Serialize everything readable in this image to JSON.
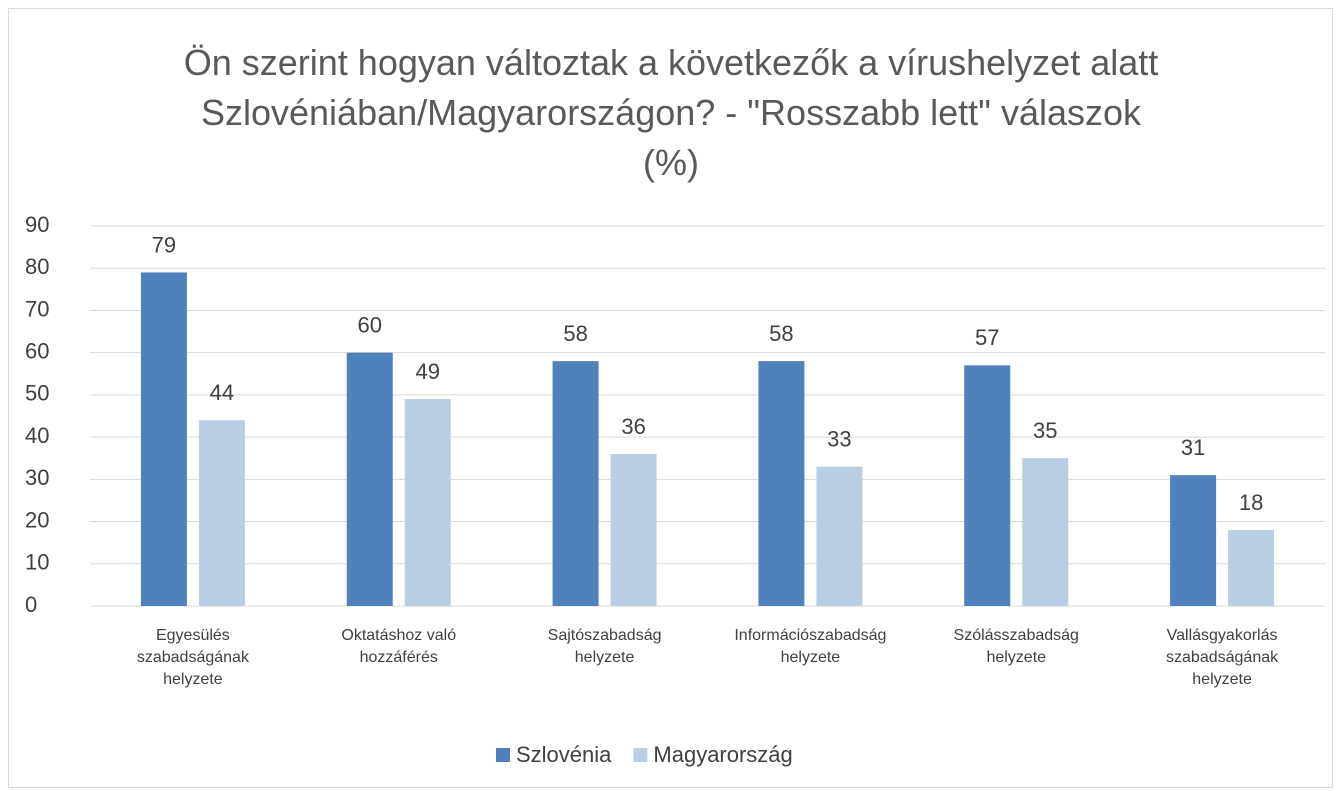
{
  "chart_data": {
    "type": "bar",
    "title": "Ön szerint hogyan változtak a következők a vírushelyzet alatt Szlovéniában/Magyarországon? - \"Rosszabb lett\" válaszok (%)",
    "categories": [
      "Egyesülés szabadságának helyzete",
      "Oktatáshoz való hozzáférés",
      "Sajtószabadság helyzete",
      "Információszabadság helyzete",
      "Szólásszabadság helyzete",
      "Vallásgyakorlás szabadságának helyzete"
    ],
    "series": [
      {
        "name": "Szlovénia",
        "color": "#4f81bd",
        "values": [
          79,
          60,
          58,
          58,
          57,
          31
        ]
      },
      {
        "name": "Magyarország",
        "color": "#b9cde5",
        "values": [
          44,
          49,
          36,
          33,
          35,
          18
        ]
      }
    ],
    "ylim": [
      0,
      90
    ],
    "yticks": [
      0,
      10,
      20,
      30,
      40,
      50,
      60,
      70,
      80,
      90
    ],
    "grid": true,
    "legend": "bottom"
  }
}
